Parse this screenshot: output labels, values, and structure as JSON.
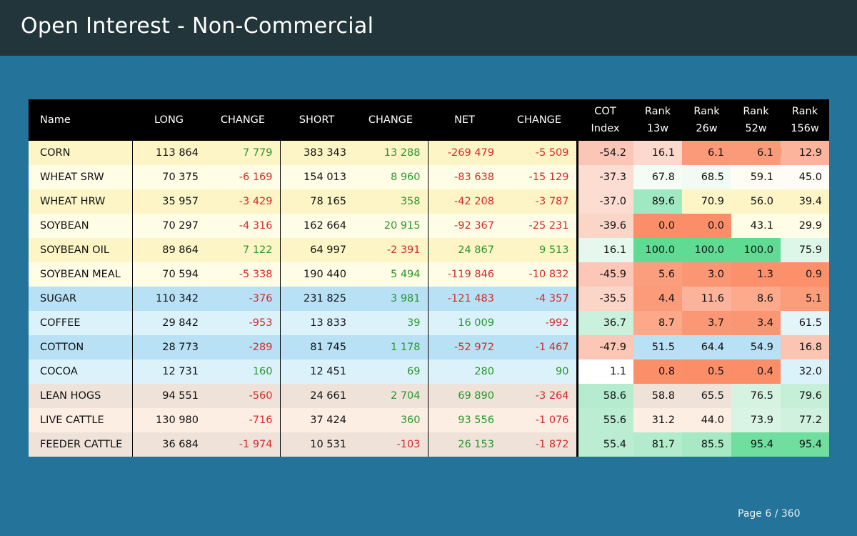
{
  "header": {
    "title": "Open Interest - Non-Commercial"
  },
  "table": {
    "columns": [
      {
        "line1": "Name",
        "line2": ""
      },
      {
        "line1": "LONG",
        "line2": ""
      },
      {
        "line1": "CHANGE",
        "line2": ""
      },
      {
        "line1": "SHORT",
        "line2": ""
      },
      {
        "line1": "CHANGE",
        "line2": ""
      },
      {
        "line1": "NET",
        "line2": ""
      },
      {
        "line1": "CHANGE",
        "line2": ""
      },
      {
        "line1": "COT",
        "line2": "Index"
      },
      {
        "line1": "Rank",
        "line2": "13w"
      },
      {
        "line1": "Rank",
        "line2": "26w"
      },
      {
        "line1": "Rank",
        "line2": "52w"
      },
      {
        "line1": "Rank",
        "line2": "156w"
      }
    ],
    "rows": [
      {
        "name": "CORN",
        "bg": "#fdf5c6",
        "long": "113 864",
        "long_chg": "7 779",
        "short": "383 343",
        "short_chg": "13 288",
        "net": "-269 479",
        "net_chg": "-5 509",
        "cot": "-54.2",
        "r13": "16.1",
        "r26": "6.1",
        "r52": "6.1",
        "r156": "12.9",
        "colors": [
          "#fcc6b7",
          "#fdd9cd",
          "#fb9a78",
          "#fb9a78",
          "#fcb49c"
        ]
      },
      {
        "name": "WHEAT SRW",
        "bg": "#fffde6",
        "long": "70 375",
        "long_chg": "-6 169",
        "short": "154 013",
        "short_chg": "8 960",
        "net": "-83 638",
        "net_chg": "-15 129",
        "cot": "-37.3",
        "r13": "67.8",
        "r26": "68.5",
        "r52": "59.1",
        "r156": "45.0",
        "colors": [
          "#fddcd2",
          "#f4fcf5",
          "#f2fbf3",
          "#fffdf3",
          "#fffbf6"
        ]
      },
      {
        "name": "WHEAT HRW",
        "bg": "#fdf5c6",
        "long": "35 957",
        "long_chg": "-3 429",
        "short": "78 165",
        "short_chg": "358",
        "net": "-42 208",
        "net_chg": "-3 787",
        "cot": "-37.0",
        "r13": "89.6",
        "r26": "70.9",
        "r52": "56.0",
        "r156": "39.4",
        "colors": [
          "#fddcd2",
          "#9fe9c2",
          "#fdf5c6",
          "#fdf5c6",
          "#fdf5c6"
        ]
      },
      {
        "name": "SOYBEAN",
        "bg": "#fffde6",
        "long": "70 297",
        "long_chg": "-4 316",
        "short": "162 664",
        "short_chg": "20 915",
        "net": "-92 367",
        "net_chg": "-25 231",
        "cot": "-39.6",
        "r13": "0.0",
        "r26": "0.0",
        "r52": "43.1",
        "r156": "29.9",
        "colors": [
          "#fcd5c9",
          "#fb8e68",
          "#fb8e68",
          "#fffde6",
          "#fffde6"
        ]
      },
      {
        "name": "SOYBEAN OIL",
        "bg": "#fdf5c6",
        "long": "89 864",
        "long_chg": "7 122",
        "short": "64 997",
        "short_chg": "-2 391",
        "net": "24 867",
        "net_chg": "9 513",
        "cot": "16.1",
        "r13": "100.0",
        "r26": "100.0",
        "r52": "100.0",
        "r156": "75.9",
        "colors": [
          "#e6f8ed",
          "#5fdb94",
          "#5fdb94",
          "#5fdb94",
          "#dcf7e8"
        ]
      },
      {
        "name": "SOYBEAN MEAL",
        "bg": "#fffde6",
        "long": "70 594",
        "long_chg": "-5 338",
        "short": "190 440",
        "short_chg": "5 494",
        "net": "-119 846",
        "net_chg": "-10 832",
        "cot": "-45.9",
        "r13": "5.6",
        "r26": "3.0",
        "r52": "1.3",
        "r156": "0.9",
        "colors": [
          "#fcc7b6",
          "#fb9e7e",
          "#fb9674",
          "#fb916c",
          "#fb906b"
        ]
      },
      {
        "name": "SUGAR",
        "bg": "#b8e1f5",
        "long": "110 342",
        "long_chg": "-376",
        "short": "231 825",
        "short_chg": "3 981",
        "net": "-121 483",
        "net_chg": "-4 357",
        "cot": "-35.5",
        "r13": "4.4",
        "r26": "11.6",
        "r52": "8.6",
        "r156": "5.1",
        "colors": [
          "#fcd5c9",
          "#fb9b79",
          "#fcb39b",
          "#fca98c",
          "#fb9c7b"
        ]
      },
      {
        "name": "COFFEE",
        "bg": "#dcf2fb",
        "long": "29 842",
        "long_chg": "-953",
        "short": "13 833",
        "short_chg": "39",
        "net": "16 009",
        "net_chg": "-992",
        "cot": "36.7",
        "r13": "8.7",
        "r26": "3.7",
        "r52": "3.4",
        "r156": "61.5",
        "colors": [
          "#c9f1dc",
          "#fca889",
          "#fb9775",
          "#fb9674",
          "#e3f5f9"
        ]
      },
      {
        "name": "COTTON",
        "bg": "#b8e1f5",
        "long": "28 773",
        "long_chg": "-289",
        "short": "81 745",
        "short_chg": "1 178",
        "net": "-52 972",
        "net_chg": "-1 467",
        "cot": "-47.9",
        "r13": "51.5",
        "r26": "64.4",
        "r52": "54.9",
        "r156": "16.8",
        "colors": [
          "#fcc7b6",
          "#b8e1f5",
          "#b8e1f5",
          "#b8e1f5",
          "#fcc5b3"
        ]
      },
      {
        "name": "COCOA",
        "bg": "#dcf2fb",
        "long": "12 731",
        "long_chg": "160",
        "short": "12 451",
        "short_chg": "69",
        "net": "280",
        "net_chg": "90",
        "cot": "1.1",
        "r13": "0.8",
        "r26": "0.5",
        "r52": "0.4",
        "r156": "32.0",
        "colors": [
          "#ffffff",
          "#fb8f69",
          "#fb8e68",
          "#fb8e68",
          "#dcf2fb"
        ]
      },
      {
        "name": "LEAN HOGS",
        "bg": "#efe2d9",
        "long": "94 551",
        "long_chg": "-560",
        "short": "24 661",
        "short_chg": "2 704",
        "net": "69 890",
        "net_chg": "-3 264",
        "cot": "58.6",
        "r13": "58.8",
        "r26": "65.5",
        "r52": "76.5",
        "r156": "79.6",
        "colors": [
          "#b5ecd0",
          "#efe2d9",
          "#efe2d9",
          "#d6f2e0",
          "#c6efd8"
        ]
      },
      {
        "name": "LIVE CATTLE",
        "bg": "#fdeee3",
        "long": "130 980",
        "long_chg": "-716",
        "short": "37 424",
        "short_chg": "360",
        "net": "93 556",
        "net_chg": "-1 076",
        "cot": "55.6",
        "r13": "31.2",
        "r26": "44.0",
        "r52": "73.9",
        "r156": "77.2",
        "colors": [
          "#bbedd3",
          "#fdeee3",
          "#fdeee3",
          "#d9f3e4",
          "#d0f1de"
        ]
      },
      {
        "name": "FEEDER CATTLE",
        "bg": "#efe2d9",
        "long": "36 684",
        "long_chg": "-1 974",
        "short": "10 531",
        "short_chg": "-103",
        "net": "26 153",
        "net_chg": "-1 872",
        "cot": "55.4",
        "r13": "81.7",
        "r26": "85.5",
        "r52": "95.4",
        "r156": "95.4",
        "colors": [
          "#bbedd3",
          "#b3eccd",
          "#a6e9c4",
          "#6fde9e",
          "#6fde9e"
        ]
      }
    ]
  },
  "footer": {
    "page": "Page 6 / 360"
  }
}
